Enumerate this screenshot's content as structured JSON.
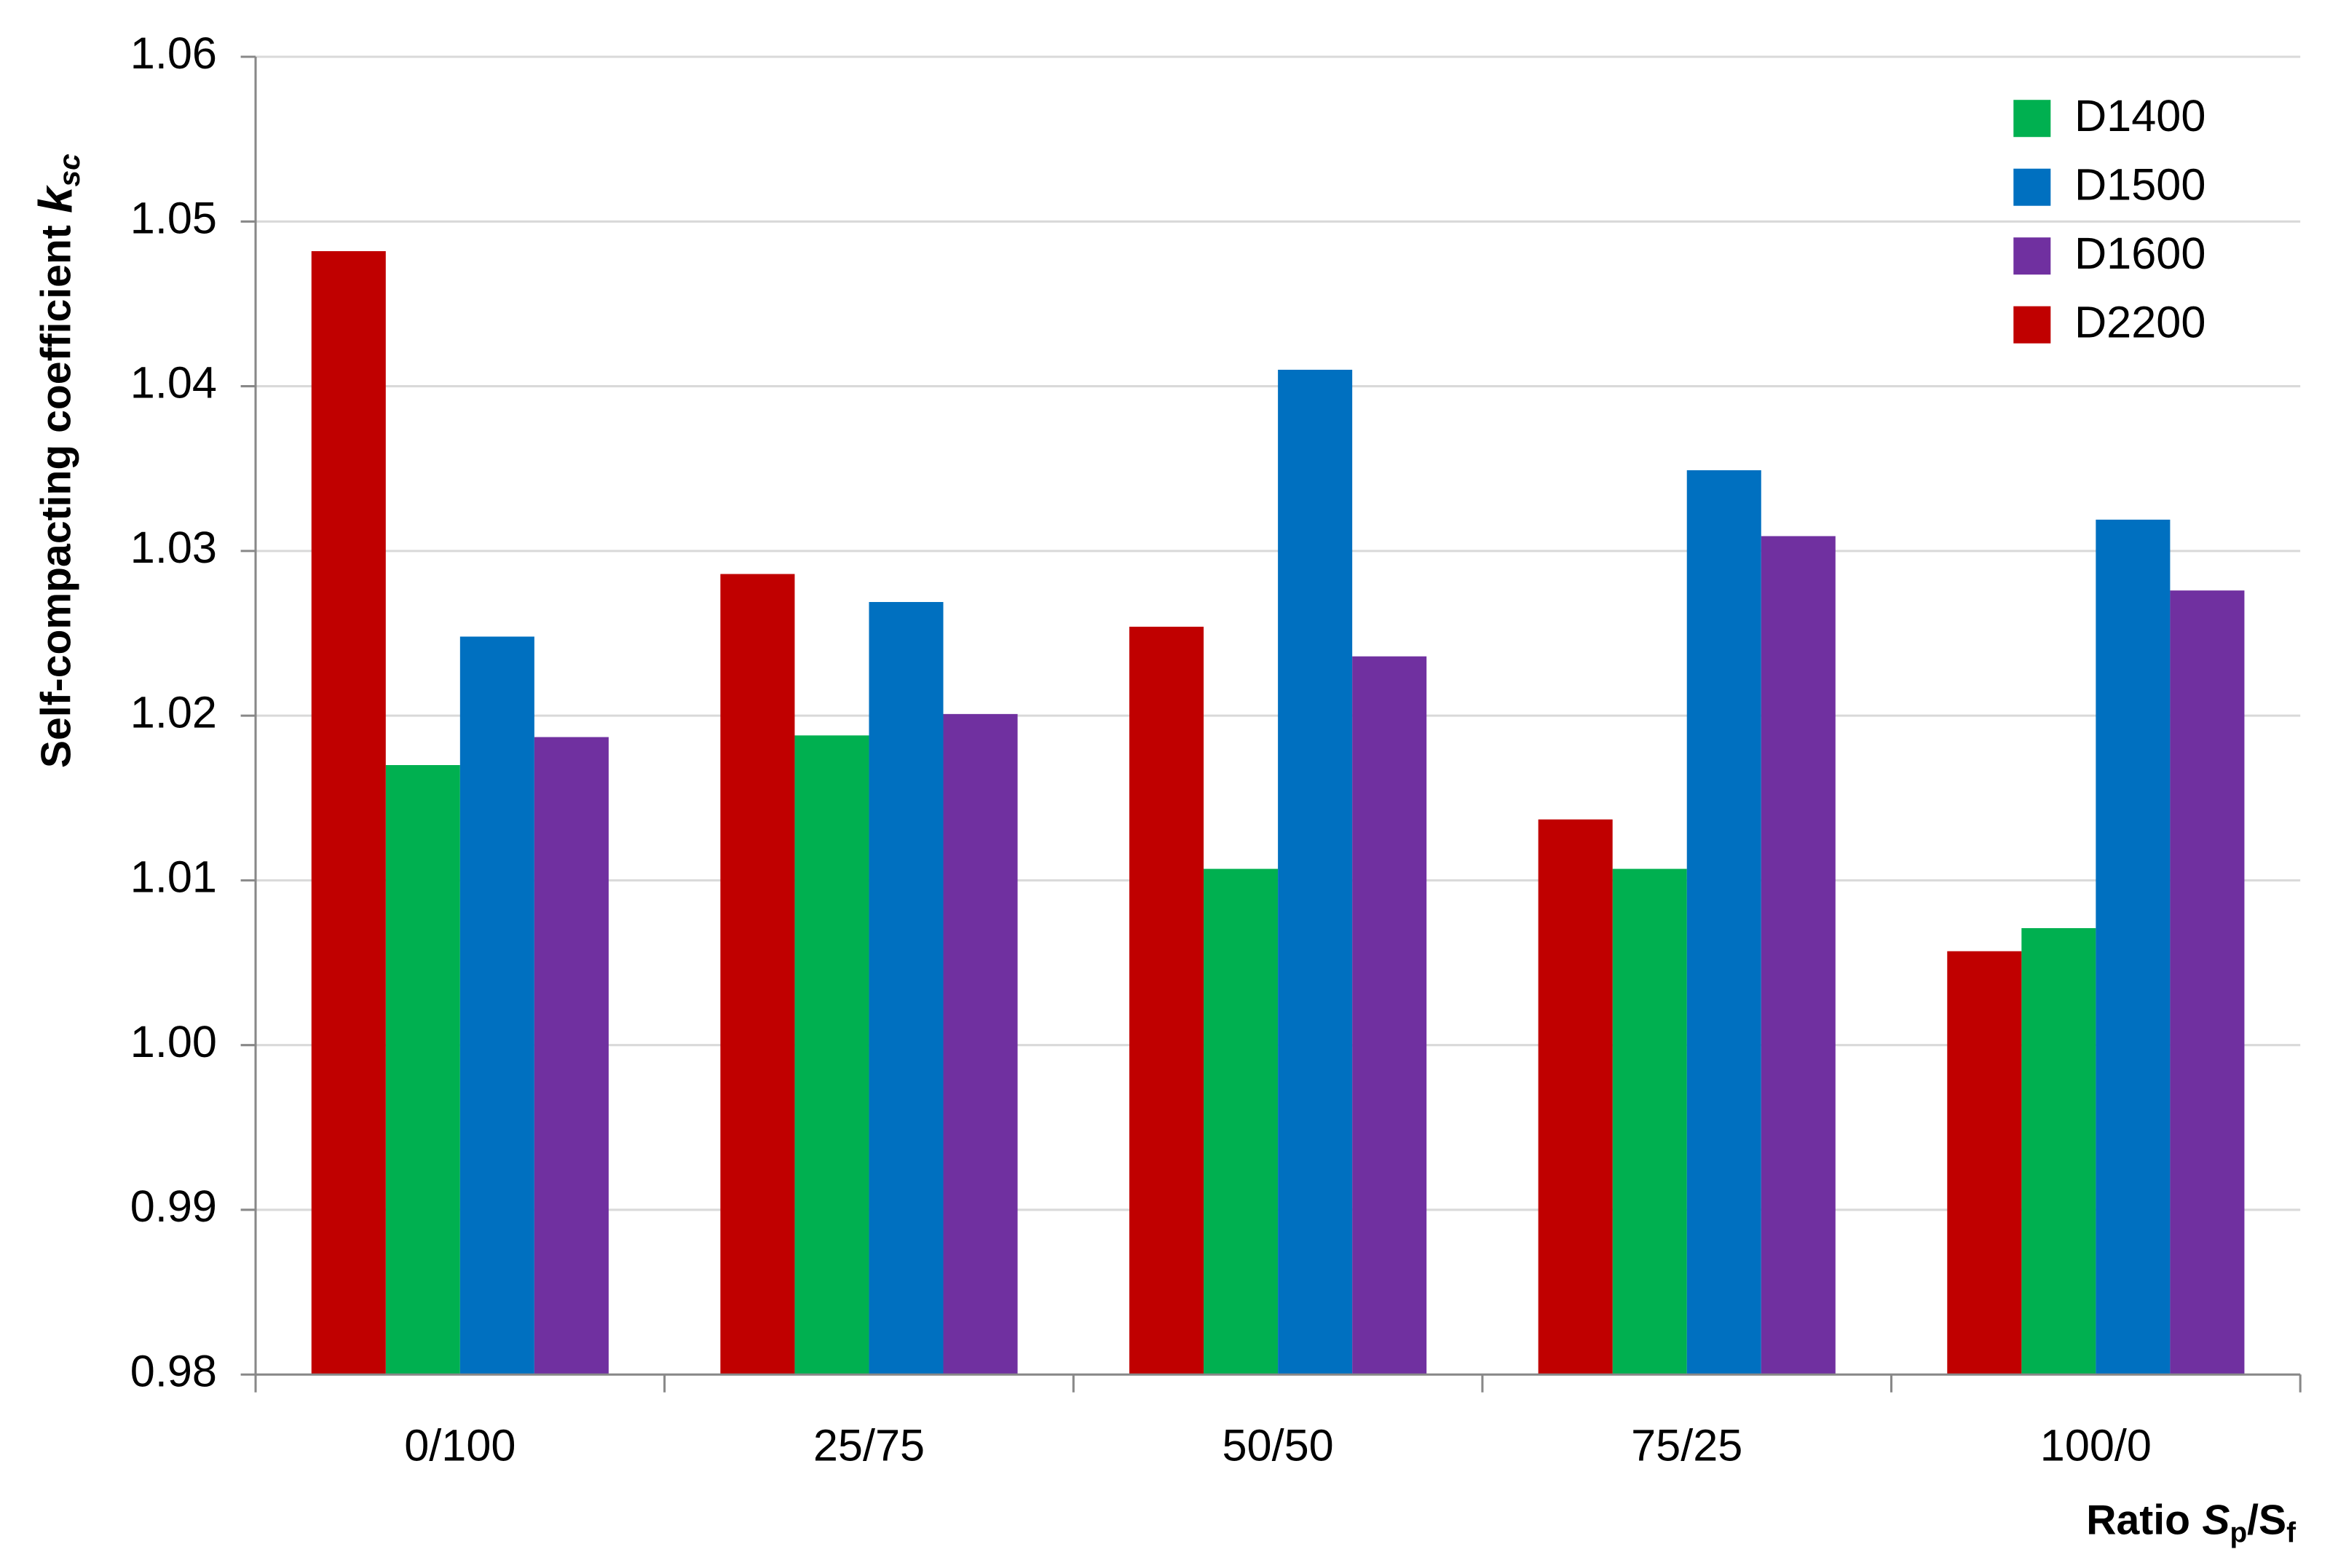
{
  "chart_data": {
    "type": "bar",
    "y_label_parts": [
      "Self-compacting coefficient",
      "k",
      "sc"
    ],
    "x_label_parts": [
      "Ratio",
      "S",
      "p",
      "/S",
      "f"
    ],
    "categories": [
      "0/100",
      "25/75",
      "50/50",
      "75/25",
      "100/0"
    ],
    "series": [
      {
        "name": "D1400",
        "color": "#00b050",
        "values": [
          1.017,
          1.0188,
          1.0107,
          1.0107,
          1.0071
        ]
      },
      {
        "name": "D1500",
        "color": "#0070c0",
        "values": [
          1.0248,
          1.0269,
          1.041,
          1.0349,
          1.0319
        ]
      },
      {
        "name": "D1600",
        "color": "#7030a0",
        "values": [
          1.0187,
          1.0201,
          1.0236,
          1.0309,
          1.0276
        ]
      },
      {
        "name": "D2200",
        "color": "#c00000",
        "values": [
          1.0482,
          1.0286,
          1.0254,
          1.0137,
          1.0057
        ]
      }
    ],
    "ylim": [
      0.98,
      1.06
    ],
    "yticks": [
      0.98,
      0.99,
      {
        "value": 1,
        "label": "1.00"
      },
      1.01,
      1.02,
      1.03,
      1.04,
      1.05,
      1.06
    ],
    "grid": true,
    "legend": "upper right"
  }
}
